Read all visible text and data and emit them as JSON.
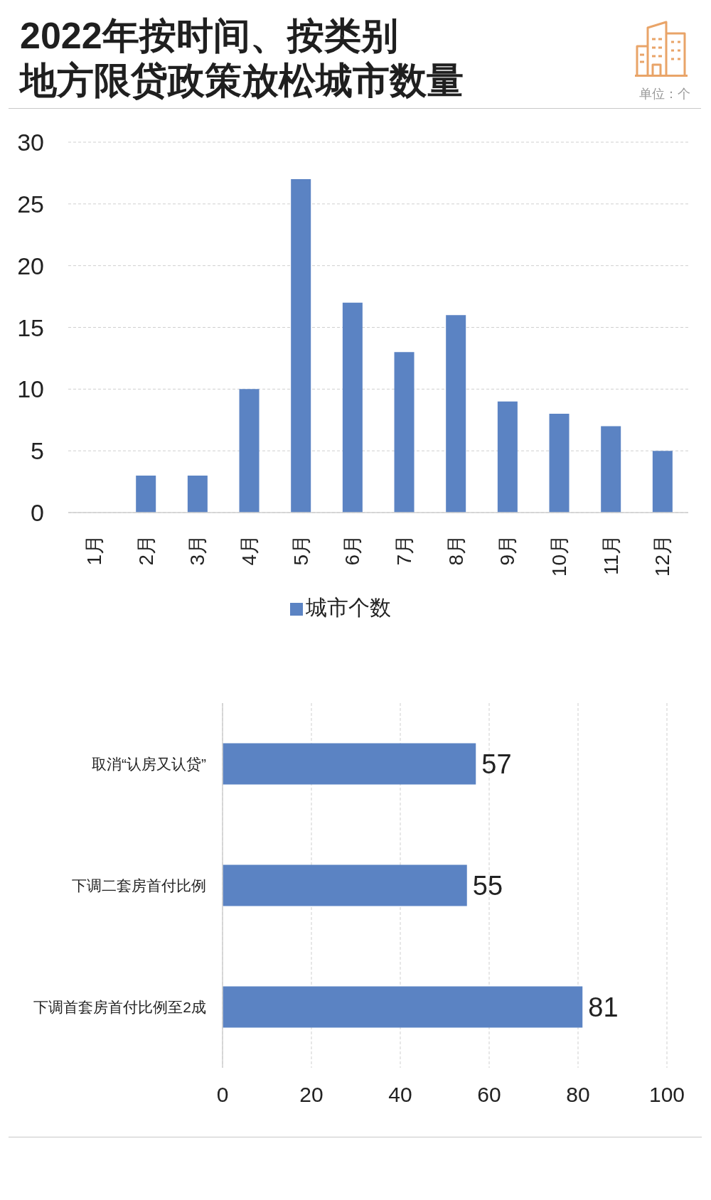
{
  "chart_data": [
    {
      "type": "bar",
      "title": "2022年按时间、按类别地方限贷政策放松城市数量",
      "annotations": [
        "单位：个"
      ],
      "categories": [
        "1月",
        "2月",
        "3月",
        "4月",
        "5月",
        "6月",
        "7月",
        "8月",
        "9月",
        "10月",
        "11月",
        "12月"
      ],
      "series": [
        {
          "name": "城市个数",
          "color": "#5b83c3",
          "values": [
            0,
            3,
            3,
            10,
            27,
            17,
            13,
            16,
            9,
            8,
            7,
            5
          ]
        }
      ],
      "ylim": [
        0,
        30
      ],
      "yticks": [
        0,
        5,
        10,
        15,
        20,
        25,
        30
      ],
      "grid": "y",
      "legend": "bottom"
    },
    {
      "type": "bar",
      "orientation": "horizontal",
      "categories": [
        "取消“认房又认贷”",
        "下调二套房首付比例",
        "下调首套房首付比例至2成"
      ],
      "values": [
        57,
        55,
        81
      ],
      "color": "#5b83c3",
      "xlim": [
        0,
        100
      ],
      "xticks": [
        0,
        20,
        40,
        60,
        80,
        100
      ],
      "grid": "x",
      "data_labels": true
    }
  ]
}
